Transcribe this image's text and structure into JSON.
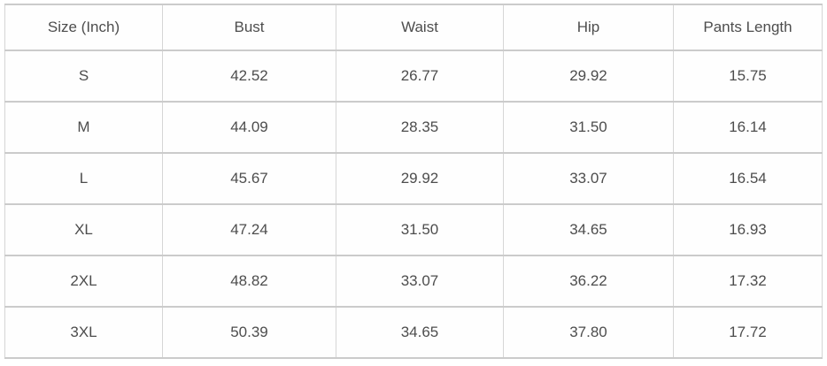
{
  "chart_data": {
    "type": "table",
    "unit_note": "measurements in inches",
    "columns": [
      "Size (Inch)",
      "Bust",
      "Waist",
      "Hip",
      "Pants Length"
    ],
    "rows": [
      [
        "S",
        "42.52",
        "26.77",
        "29.92",
        "15.75"
      ],
      [
        "M",
        "44.09",
        "28.35",
        "31.50",
        "16.14"
      ],
      [
        "L",
        "45.67",
        "29.92",
        "33.07",
        "16.54"
      ],
      [
        "XL",
        "47.24",
        "31.50",
        "34.65",
        "16.93"
      ],
      [
        "2XL",
        "48.82",
        "33.07",
        "36.22",
        "17.32"
      ],
      [
        "3XL",
        "50.39",
        "34.65",
        "37.80",
        "17.72"
      ]
    ]
  },
  "colors": {
    "text": "#4d4d4d",
    "grid_horizontal": "#cbcbcb",
    "grid_vertical": "#d6d6d6",
    "background": "#ffffff"
  }
}
